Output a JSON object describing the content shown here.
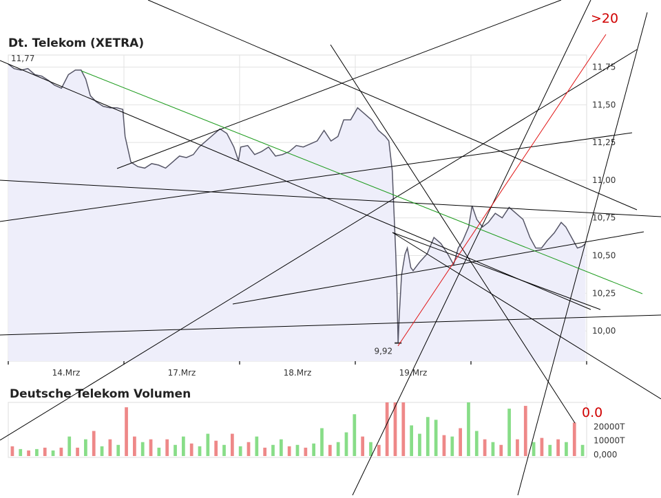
{
  "chart_data": [
    {
      "type": "line",
      "title": "Dt. Telekom (XETRA)",
      "color": "#555566",
      "fill": "#eeeefa",
      "grid": true,
      "x": [
        0,
        0.05,
        0.11,
        0.17,
        0.23,
        0.29,
        0.35,
        0.4,
        0.46,
        0.52,
        0.58,
        0.63,
        0.67,
        0.71,
        0.76,
        0.82,
        0.88,
        0.94,
        0.99,
        1.01,
        1.06,
        1.12,
        1.18,
        1.24,
        1.3,
        1.36,
        1.42,
        1.48,
        1.54,
        1.6,
        1.65,
        1.71,
        1.77,
        1.83,
        1.89,
        1.95,
        1.99,
        2.01,
        2.07,
        2.13,
        2.19,
        2.25,
        2.31,
        2.37,
        2.43,
        2.49,
        2.55,
        2.61,
        2.67,
        2.73,
        2.79,
        2.85,
        2.9,
        2.96,
        3.02,
        3.08,
        3.14,
        3.2,
        3.26,
        3.29,
        3.32,
        3.33,
        3.35,
        3.36,
        3.37,
        3.38,
        3.4,
        3.43,
        3.45,
        3.48,
        3.5,
        3.56,
        3.62,
        3.68,
        3.74,
        3.8,
        3.85,
        3.89,
        3.93,
        3.98,
        4.01,
        4.05,
        4.1,
        4.15,
        4.21,
        4.27,
        4.33,
        4.39,
        4.45,
        4.51,
        4.56,
        4.61,
        4.66,
        4.72,
        4.78,
        4.82,
        4.87,
        4.92,
        4.96,
        4.99
      ],
      "values": [
        11.77,
        11.74,
        11.73,
        11.74,
        11.7,
        11.69,
        11.66,
        11.63,
        11.61,
        11.7,
        11.73,
        11.73,
        11.67,
        11.56,
        11.52,
        11.49,
        11.48,
        11.48,
        11.47,
        11.29,
        11.12,
        11.09,
        11.08,
        11.11,
        11.1,
        11.08,
        11.12,
        11.16,
        11.15,
        11.17,
        11.22,
        11.26,
        11.3,
        11.34,
        11.31,
        11.22,
        11.13,
        11.22,
        11.23,
        11.17,
        11.19,
        11.22,
        11.16,
        11.17,
        11.19,
        11.23,
        11.22,
        11.24,
        11.26,
        11.33,
        11.26,
        11.29,
        11.4,
        11.4,
        11.48,
        11.44,
        11.4,
        11.33,
        11.29,
        11.26,
        11.06,
        10.87,
        10.51,
        10.28,
        9.92,
        10.1,
        10.37,
        10.51,
        10.55,
        10.42,
        10.4,
        10.46,
        10.51,
        10.62,
        10.58,
        10.51,
        10.44,
        10.55,
        10.6,
        10.69,
        10.83,
        10.74,
        10.69,
        10.72,
        10.78,
        10.75,
        10.82,
        10.78,
        10.74,
        10.62,
        10.55,
        10.55,
        10.6,
        10.65,
        10.72,
        10.69,
        10.62,
        10.55,
        10.56,
        10.58
      ],
      "xlim": [
        0,
        5
      ],
      "xticks": [
        {
          "value": 0.5,
          "label": "14.Mrz"
        },
        {
          "value": 1.5,
          "label": "17.Mrz"
        },
        {
          "value": 2.5,
          "label": "18.Mrz"
        },
        {
          "value": 3.5,
          "label": "19.Mrz"
        }
      ],
      "ylim": [
        9.8,
        11.83
      ],
      "yticks": [
        {
          "value": 10,
          "label": "10,00"
        },
        {
          "value": 10.25,
          "label": "10,25"
        },
        {
          "value": 10.5,
          "label": "10,50"
        },
        {
          "value": 10.75,
          "label": "10,75"
        },
        {
          "value": 11,
          "label": "11,00"
        },
        {
          "value": 11.25,
          "label": "11,25"
        },
        {
          "value": 11.5,
          "label": "11,50"
        },
        {
          "value": 11.75,
          "label": "11,75"
        }
      ],
      "max_label": {
        "value": 11.77,
        "label": "11,77"
      },
      "min_label": {
        "value": 9.92,
        "label": "9,92"
      },
      "annotations": [
        ">20",
        "0.0"
      ]
    },
    {
      "type": "bar",
      "title": "Deutsche Telekom Volumen",
      "grid": false,
      "values": [
        7000,
        5000,
        4000,
        5000,
        6000,
        4000,
        6000,
        14000,
        6000,
        12000,
        18000,
        7000,
        12000,
        8000,
        35000,
        14000,
        10000,
        12000,
        6000,
        12000,
        8000,
        14000,
        9000,
        7000,
        16000,
        11000,
        8000,
        16000,
        7000,
        10000,
        14000,
        6000,
        8000,
        12000,
        7000,
        8000,
        6000,
        9000,
        20000,
        8000,
        10000,
        17000,
        30000,
        14000,
        10000,
        8000,
        40000,
        40000,
        40000,
        22000,
        16000,
        28000,
        26000,
        15000,
        14000,
        20000,
        40000,
        18000,
        12000,
        10000,
        8000,
        34000,
        12000,
        36000,
        10000,
        13000,
        8000,
        12000,
        10000,
        24000,
        8000
      ],
      "colors": [
        "#e88",
        "#8d8",
        "#e88",
        "#8d8",
        "#e88",
        "#8d8",
        "#e88",
        "#8d8",
        "#e88",
        "#8d8",
        "#e88",
        "#8d8",
        "#e88",
        "#8d8",
        "#e88",
        "#e88",
        "#8d8",
        "#e88",
        "#8d8",
        "#e88",
        "#8d8",
        "#8d8",
        "#e88",
        "#8d8",
        "#8d8",
        "#e88",
        "#8d8",
        "#e88",
        "#8d8",
        "#e88",
        "#8d8",
        "#e88",
        "#8d8",
        "#8d8",
        "#e88",
        "#8d8",
        "#e88",
        "#8d8",
        "#8d8",
        "#e88",
        "#8d8",
        "#8d8",
        "#8d8",
        "#e88",
        "#8d8",
        "#e88",
        "#e88",
        "#e88",
        "#e88",
        "#8d8",
        "#8d8",
        "#8d8",
        "#8d8",
        "#e88",
        "#8d8",
        "#e88",
        "#8d8",
        "#8d8",
        "#e88",
        "#8d8",
        "#e88",
        "#8d8",
        "#e88",
        "#e88",
        "#8d8",
        "#e88",
        "#8d8",
        "#e88",
        "#8d8",
        "#e88",
        "#8d8"
      ],
      "ylim": [
        0,
        38500
      ],
      "yticks": [
        {
          "value": 0,
          "label": "0,000"
        },
        {
          "value": 10000,
          "label": "10000T"
        },
        {
          "value": 20000,
          "label": "20000T"
        }
      ]
    }
  ]
}
